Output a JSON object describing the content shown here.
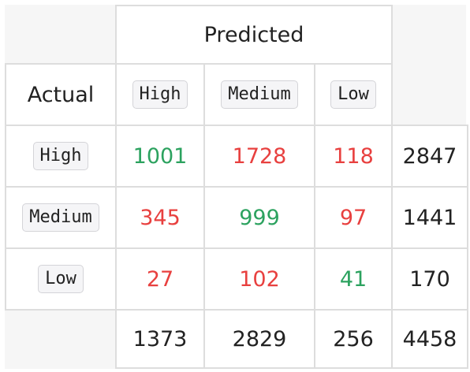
{
  "header": {
    "predicted_label": "Predicted",
    "actual_label": "Actual"
  },
  "columns": [
    "High",
    "Medium",
    "Low"
  ],
  "rows": [
    {
      "label": "High",
      "cells": [
        "1001",
        "1728",
        "118"
      ],
      "total": "2847"
    },
    {
      "label": "Medium",
      "cells": [
        "345",
        "999",
        "97"
      ],
      "total": "1441"
    },
    {
      "label": "Low",
      "cells": [
        "27",
        "102",
        "41"
      ],
      "total": "170"
    }
  ],
  "column_totals": [
    "1373",
    "2829",
    "256"
  ],
  "grand_total": "4458",
  "colors": {
    "correct": "#2ca25f",
    "incorrect": "#e8403f",
    "total": "#222222",
    "grid": "#dddddd",
    "blank": "#f6f6f6"
  }
}
